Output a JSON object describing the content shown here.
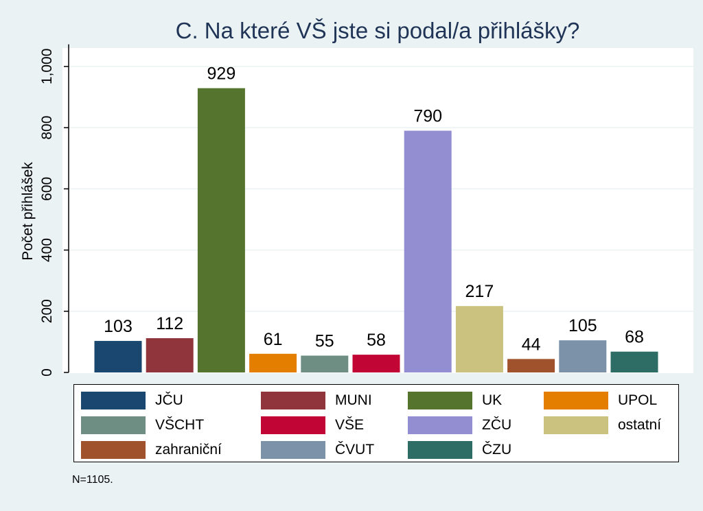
{
  "chart_data": {
    "type": "bar",
    "title": "C. Na které VŠ jste si podal/a přihlášky?",
    "ylabel": "Počet přihlášek",
    "xlabel": "",
    "ylim": [
      0,
      1050
    ],
    "yticks": [
      0,
      200,
      400,
      600,
      800,
      1000
    ],
    "ytick_labels": [
      "0",
      "200",
      "400",
      "600",
      "800",
      "1,000"
    ],
    "grid": true,
    "legend_position": "bottom",
    "categories": [
      "JČU",
      "MUNI",
      "UK",
      "UPOL",
      "VŠCHT",
      "VŠE",
      "ZČU",
      "ostatní",
      "zahraniční",
      "ČVUT",
      "ČZU"
    ],
    "values": [
      103,
      112,
      929,
      61,
      55,
      58,
      790,
      217,
      44,
      105,
      68
    ],
    "colors": [
      "#1a476f",
      "#90353b",
      "#55752f",
      "#e37e00",
      "#6e8e84",
      "#c10534",
      "#938dd2",
      "#cac27e",
      "#a0522d",
      "#7b92a8",
      "#2d6d66"
    ],
    "note": "N=1105."
  }
}
